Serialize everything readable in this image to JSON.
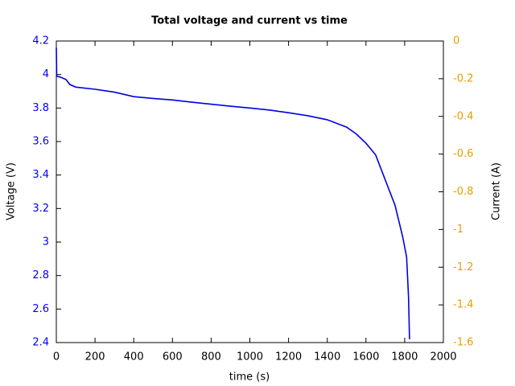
{
  "chart_data": {
    "type": "line",
    "title": "Total voltage and current vs time",
    "x_label": "time (s)",
    "y_label": "Voltage (V)",
    "y2_label": "Current (A)",
    "xlim": [
      0,
      2000
    ],
    "xticks": [
      0,
      200,
      400,
      600,
      800,
      1000,
      1200,
      1400,
      1600,
      1800,
      2000
    ],
    "ylim": [
      2.4,
      4.2
    ],
    "yticks": [
      2.4,
      2.6,
      2.8,
      3,
      3.2,
      3.4,
      3.6,
      3.8,
      4,
      4.2
    ],
    "y2lim": [
      -1.6,
      0
    ],
    "y2ticks": [
      -1.6,
      -1.4,
      -1.2,
      -1,
      -0.8,
      -0.6,
      -0.4,
      -0.2,
      0
    ],
    "y_color": "#0000ff",
    "y2_color": "#e69f00",
    "series": [
      {
        "name": "Voltage",
        "color": "#0000e0",
        "x": [
          0,
          2,
          20,
          50,
          70,
          100,
          200,
          300,
          400,
          500,
          600,
          700,
          800,
          900,
          1000,
          1100,
          1200,
          1300,
          1400,
          1500,
          1550,
          1600,
          1650,
          1700,
          1750,
          1790,
          1810,
          1820,
          1825
        ],
        "values": [
          4.16,
          3.99,
          3.985,
          3.97,
          3.94,
          3.925,
          3.912,
          3.895,
          3.868,
          3.857,
          3.848,
          3.835,
          3.823,
          3.811,
          3.8,
          3.788,
          3.772,
          3.754,
          3.73,
          3.686,
          3.645,
          3.59,
          3.52,
          3.37,
          3.22,
          3.03,
          2.91,
          2.67,
          2.42
        ]
      }
    ]
  }
}
